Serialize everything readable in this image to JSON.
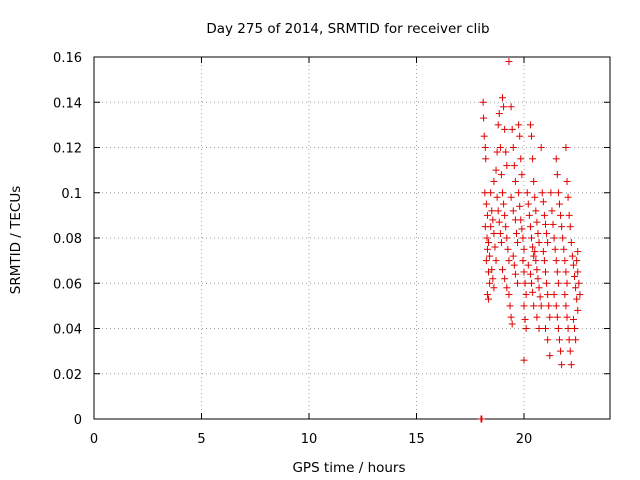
{
  "chart_data": {
    "type": "scatter",
    "title": "Day 275 of 2014, SRMTID for receiver clib",
    "xlabel": "GPS time / hours",
    "ylabel": "SRMTID / TECUs",
    "xlim": [
      0,
      24
    ],
    "ylim": [
      0,
      0.16
    ],
    "xticks": [
      "0",
      "5",
      "10",
      "15",
      "20"
    ],
    "yticks": [
      "0",
      "0.02",
      "0.04",
      "0.06",
      "0.08",
      "0.1",
      "0.12",
      "0.14",
      "0.16"
    ],
    "xtick_values": [
      0,
      5,
      10,
      15,
      20
    ],
    "ytick_values": [
      0,
      0.02,
      0.04,
      0.06,
      0.08,
      0.1,
      0.12,
      0.14,
      0.16
    ],
    "grid": true,
    "marker": "+",
    "color": "#e00000",
    "points": [
      [
        18.0,
        0.0
      ],
      [
        18.02,
        0.0
      ],
      [
        18.04,
        0.0
      ],
      [
        18.1,
        0.14
      ],
      [
        18.12,
        0.133
      ],
      [
        18.15,
        0.125
      ],
      [
        18.2,
        0.12
      ],
      [
        18.22,
        0.115
      ],
      [
        18.18,
        0.1
      ],
      [
        18.25,
        0.095
      ],
      [
        18.3,
        0.09
      ],
      [
        18.2,
        0.085
      ],
      [
        18.28,
        0.08
      ],
      [
        18.35,
        0.078
      ],
      [
        18.3,
        0.075
      ],
      [
        18.4,
        0.072
      ],
      [
        18.25,
        0.07
      ],
      [
        18.35,
        0.065
      ],
      [
        18.4,
        0.06
      ],
      [
        18.3,
        0.055
      ],
      [
        18.35,
        0.053
      ],
      [
        18.45,
        0.085
      ],
      [
        18.5,
        0.092
      ],
      [
        18.55,
        0.088
      ],
      [
        18.6,
        0.082
      ],
      [
        18.65,
        0.076
      ],
      [
        18.7,
        0.07
      ],
      [
        18.5,
        0.066
      ],
      [
        18.55,
        0.062
      ],
      [
        18.6,
        0.058
      ],
      [
        18.45,
        0.1
      ],
      [
        18.6,
        0.105
      ],
      [
        18.7,
        0.11
      ],
      [
        18.75,
        0.118
      ],
      [
        18.8,
        0.13
      ],
      [
        18.85,
        0.135
      ],
      [
        18.9,
        0.12
      ],
      [
        18.95,
        0.108
      ],
      [
        18.75,
        0.098
      ],
      [
        18.8,
        0.092
      ],
      [
        18.85,
        0.087
      ],
      [
        18.9,
        0.082
      ],
      [
        18.95,
        0.078
      ],
      [
        19.0,
        0.142
      ],
      [
        19.05,
        0.138
      ],
      [
        19.1,
        0.128
      ],
      [
        19.15,
        0.118
      ],
      [
        19.2,
        0.112
      ],
      [
        19.0,
        0.1
      ],
      [
        19.05,
        0.095
      ],
      [
        19.1,
        0.09
      ],
      [
        19.15,
        0.085
      ],
      [
        19.2,
        0.08
      ],
      [
        19.25,
        0.075
      ],
      [
        19.3,
        0.07
      ],
      [
        19.0,
        0.066
      ],
      [
        19.1,
        0.062
      ],
      [
        19.2,
        0.058
      ],
      [
        19.3,
        0.055
      ],
      [
        19.35,
        0.05
      ],
      [
        19.4,
        0.045
      ],
      [
        19.45,
        0.042
      ],
      [
        19.3,
        0.158
      ],
      [
        19.4,
        0.138
      ],
      [
        19.45,
        0.128
      ],
      [
        19.5,
        0.12
      ],
      [
        19.55,
        0.112
      ],
      [
        19.6,
        0.105
      ],
      [
        19.4,
        0.098
      ],
      [
        19.5,
        0.092
      ],
      [
        19.6,
        0.088
      ],
      [
        19.65,
        0.082
      ],
      [
        19.7,
        0.078
      ],
      [
        19.5,
        0.072
      ],
      [
        19.55,
        0.068
      ],
      [
        19.6,
        0.064
      ],
      [
        19.7,
        0.06
      ],
      [
        19.75,
        0.13
      ],
      [
        19.8,
        0.125
      ],
      [
        19.85,
        0.115
      ],
      [
        19.9,
        0.108
      ],
      [
        19.75,
        0.1
      ],
      [
        19.8,
        0.094
      ],
      [
        19.85,
        0.088
      ],
      [
        19.9,
        0.084
      ],
      [
        19.95,
        0.08
      ],
      [
        20.0,
        0.075
      ],
      [
        19.95,
        0.07
      ],
      [
        20.0,
        0.065
      ],
      [
        20.05,
        0.06
      ],
      [
        20.1,
        0.055
      ],
      [
        20.0,
        0.05
      ],
      [
        20.05,
        0.044
      ],
      [
        20.1,
        0.04
      ],
      [
        20.0,
        0.026
      ],
      [
        20.15,
        0.1
      ],
      [
        20.2,
        0.095
      ],
      [
        20.25,
        0.09
      ],
      [
        20.3,
        0.085
      ],
      [
        20.35,
        0.08
      ],
      [
        20.4,
        0.076
      ],
      [
        20.45,
        0.072
      ],
      [
        20.2,
        0.068
      ],
      [
        20.3,
        0.064
      ],
      [
        20.35,
        0.06
      ],
      [
        20.4,
        0.056
      ],
      [
        20.45,
        0.05
      ],
      [
        20.3,
        0.13
      ],
      [
        20.35,
        0.125
      ],
      [
        20.4,
        0.115
      ],
      [
        20.45,
        0.105
      ],
      [
        20.5,
        0.098
      ],
      [
        20.55,
        0.092
      ],
      [
        20.6,
        0.087
      ],
      [
        20.65,
        0.082
      ],
      [
        20.7,
        0.078
      ],
      [
        20.5,
        0.074
      ],
      [
        20.55,
        0.07
      ],
      [
        20.6,
        0.066
      ],
      [
        20.65,
        0.062
      ],
      [
        20.7,
        0.058
      ],
      [
        20.75,
        0.054
      ],
      [
        20.8,
        0.05
      ],
      [
        20.6,
        0.045
      ],
      [
        20.7,
        0.04
      ],
      [
        20.8,
        0.12
      ],
      [
        20.85,
        0.1
      ],
      [
        20.9,
        0.096
      ],
      [
        20.95,
        0.09
      ],
      [
        21.0,
        0.086
      ],
      [
        21.05,
        0.082
      ],
      [
        21.1,
        0.078
      ],
      [
        20.9,
        0.074
      ],
      [
        20.95,
        0.07
      ],
      [
        21.0,
        0.065
      ],
      [
        21.05,
        0.06
      ],
      [
        21.1,
        0.055
      ],
      [
        21.15,
        0.05
      ],
      [
        21.2,
        0.045
      ],
      [
        21.0,
        0.04
      ],
      [
        21.1,
        0.035
      ],
      [
        21.2,
        0.028
      ],
      [
        21.25,
        0.1
      ],
      [
        21.3,
        0.092
      ],
      [
        21.35,
        0.086
      ],
      [
        21.4,
        0.08
      ],
      [
        21.45,
        0.075
      ],
      [
        21.5,
        0.07
      ],
      [
        21.55,
        0.065
      ],
      [
        21.6,
        0.06
      ],
      [
        21.4,
        0.055
      ],
      [
        21.5,
        0.05
      ],
      [
        21.55,
        0.045
      ],
      [
        21.6,
        0.04
      ],
      [
        21.65,
        0.035
      ],
      [
        21.7,
        0.03
      ],
      [
        21.75,
        0.024
      ],
      [
        21.5,
        0.115
      ],
      [
        21.55,
        0.108
      ],
      [
        21.6,
        0.1
      ],
      [
        21.65,
        0.095
      ],
      [
        21.7,
        0.09
      ],
      [
        21.75,
        0.085
      ],
      [
        21.8,
        0.08
      ],
      [
        21.85,
        0.075
      ],
      [
        21.9,
        0.07
      ],
      [
        21.95,
        0.065
      ],
      [
        22.0,
        0.06
      ],
      [
        21.9,
        0.055
      ],
      [
        21.95,
        0.05
      ],
      [
        22.0,
        0.045
      ],
      [
        22.05,
        0.04
      ],
      [
        22.1,
        0.035
      ],
      [
        22.15,
        0.03
      ],
      [
        22.2,
        0.024
      ],
      [
        21.95,
        0.12
      ],
      [
        22.0,
        0.105
      ],
      [
        22.05,
        0.098
      ],
      [
        22.1,
        0.09
      ],
      [
        22.15,
        0.085
      ],
      [
        22.2,
        0.078
      ],
      [
        22.25,
        0.072
      ],
      [
        22.3,
        0.068
      ],
      [
        22.35,
        0.063
      ],
      [
        22.4,
        0.058
      ],
      [
        22.45,
        0.053
      ],
      [
        22.5,
        0.048
      ],
      [
        22.3,
        0.044
      ],
      [
        22.35,
        0.04
      ],
      [
        22.4,
        0.035
      ],
      [
        22.5,
        0.065
      ],
      [
        22.55,
        0.06
      ],
      [
        22.6,
        0.055
      ],
      [
        22.45,
        0.07
      ],
      [
        22.5,
        0.074
      ]
    ]
  }
}
